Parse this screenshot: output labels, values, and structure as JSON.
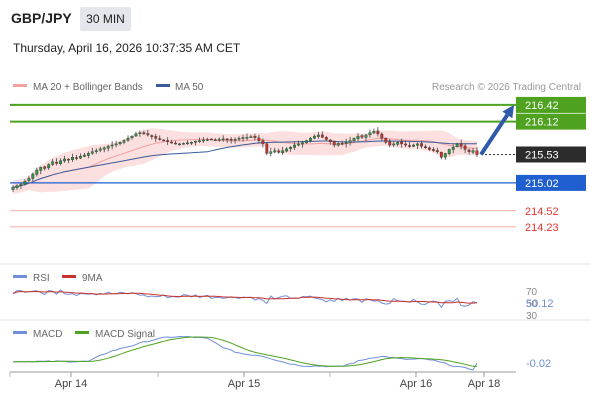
{
  "header": {
    "symbol": "GBP/JPY",
    "timeframe": "30 MIN",
    "datetime": "Thursday, April 16, 2026 10:37:35 AM CET"
  },
  "legend": {
    "ma20_label": "MA 20 + Bollinger Bands",
    "ma50_label": "MA 50",
    "credit": "Research © 2026 Trading Central"
  },
  "colors": {
    "green": "#4ea21f",
    "blue": "#1f5fd0",
    "red": "#e83535",
    "ma20": "#f3a0a0",
    "ma50": "#3a5a9a",
    "band": "#fbd9d9",
    "bull": "#2e9e44",
    "bear": "#c8302c",
    "rsi": "#6f8fd9",
    "rsi_ma": "#c8302c",
    "macd": "#6f8fd9",
    "macd_signal": "#4ea21f",
    "last_price_bg": "#2c2c2c",
    "arrow": "#2f5aa8"
  },
  "chart_data": [
    {
      "type": "candlestick",
      "name": "price",
      "ylim": [
        213.6,
        216.58
      ],
      "levels": [
        {
          "value": 216.42,
          "label": "216.42",
          "kind": "resistance"
        },
        {
          "value": 216.12,
          "label": "216.12",
          "kind": "resistance"
        },
        {
          "value": 215.02,
          "label": "215.02",
          "kind": "pivot"
        },
        {
          "value": 214.52,
          "label": "214.52",
          "kind": "support"
        },
        {
          "value": 214.23,
          "label": "214.23",
          "kind": "support"
        }
      ],
      "last_price": {
        "value": 215.53,
        "label": "215.53"
      },
      "arrow": {
        "from": 215.53,
        "to": 216.42
      },
      "x_labels": [
        "Apr 14",
        "Apr 15",
        "Apr 16",
        "Apr 18"
      ],
      "close": [
        214.94,
        214.97,
        215.0,
        215.05,
        215.1,
        215.18,
        215.25,
        215.3,
        215.28,
        215.35,
        215.4,
        215.37,
        215.42,
        215.45,
        215.44,
        215.48,
        215.46,
        215.5,
        215.52,
        215.55,
        215.58,
        215.6,
        215.63,
        215.65,
        215.68,
        215.7,
        215.72,
        215.75,
        215.78,
        215.82,
        215.86,
        215.9,
        215.92,
        215.9,
        215.88,
        215.85,
        215.82,
        215.8,
        215.78,
        215.76,
        215.74,
        215.72,
        215.72,
        215.73,
        215.74,
        215.75,
        215.77,
        215.78,
        215.79,
        215.8,
        215.8,
        215.79,
        215.8,
        215.81,
        215.8,
        215.79,
        215.8,
        215.82,
        215.83,
        215.84,
        215.85,
        215.83,
        215.78,
        215.72,
        215.55,
        215.58,
        215.6,
        215.57,
        215.6,
        215.63,
        215.66,
        215.7,
        215.72,
        215.74,
        215.78,
        215.82,
        215.86,
        215.88,
        215.84,
        215.8,
        215.76,
        215.7,
        215.73,
        215.72,
        215.75,
        215.78,
        215.82,
        215.86,
        215.84,
        215.88,
        215.92,
        215.95,
        215.9,
        215.82,
        215.75,
        215.7,
        215.72,
        215.75,
        215.72,
        215.7,
        215.68,
        215.7,
        215.72,
        215.68,
        215.65,
        215.62,
        215.6,
        215.58,
        215.48,
        215.55,
        215.62,
        215.66,
        215.72,
        215.68,
        215.62,
        215.58,
        215.6,
        215.53
      ]
    },
    {
      "type": "line",
      "name": "RSI",
      "series": [
        {
          "name": "RSI"
        },
        {
          "name": "9MA"
        }
      ],
      "ticks": [
        70,
        50,
        30
      ],
      "last_value": 50.12,
      "last_label": "50.12"
    },
    {
      "type": "line",
      "name": "MACD",
      "series": [
        {
          "name": "MACD"
        },
        {
          "name": "MACD Signal"
        }
      ],
      "last_value": -0.02,
      "last_label": "-0.02"
    }
  ]
}
